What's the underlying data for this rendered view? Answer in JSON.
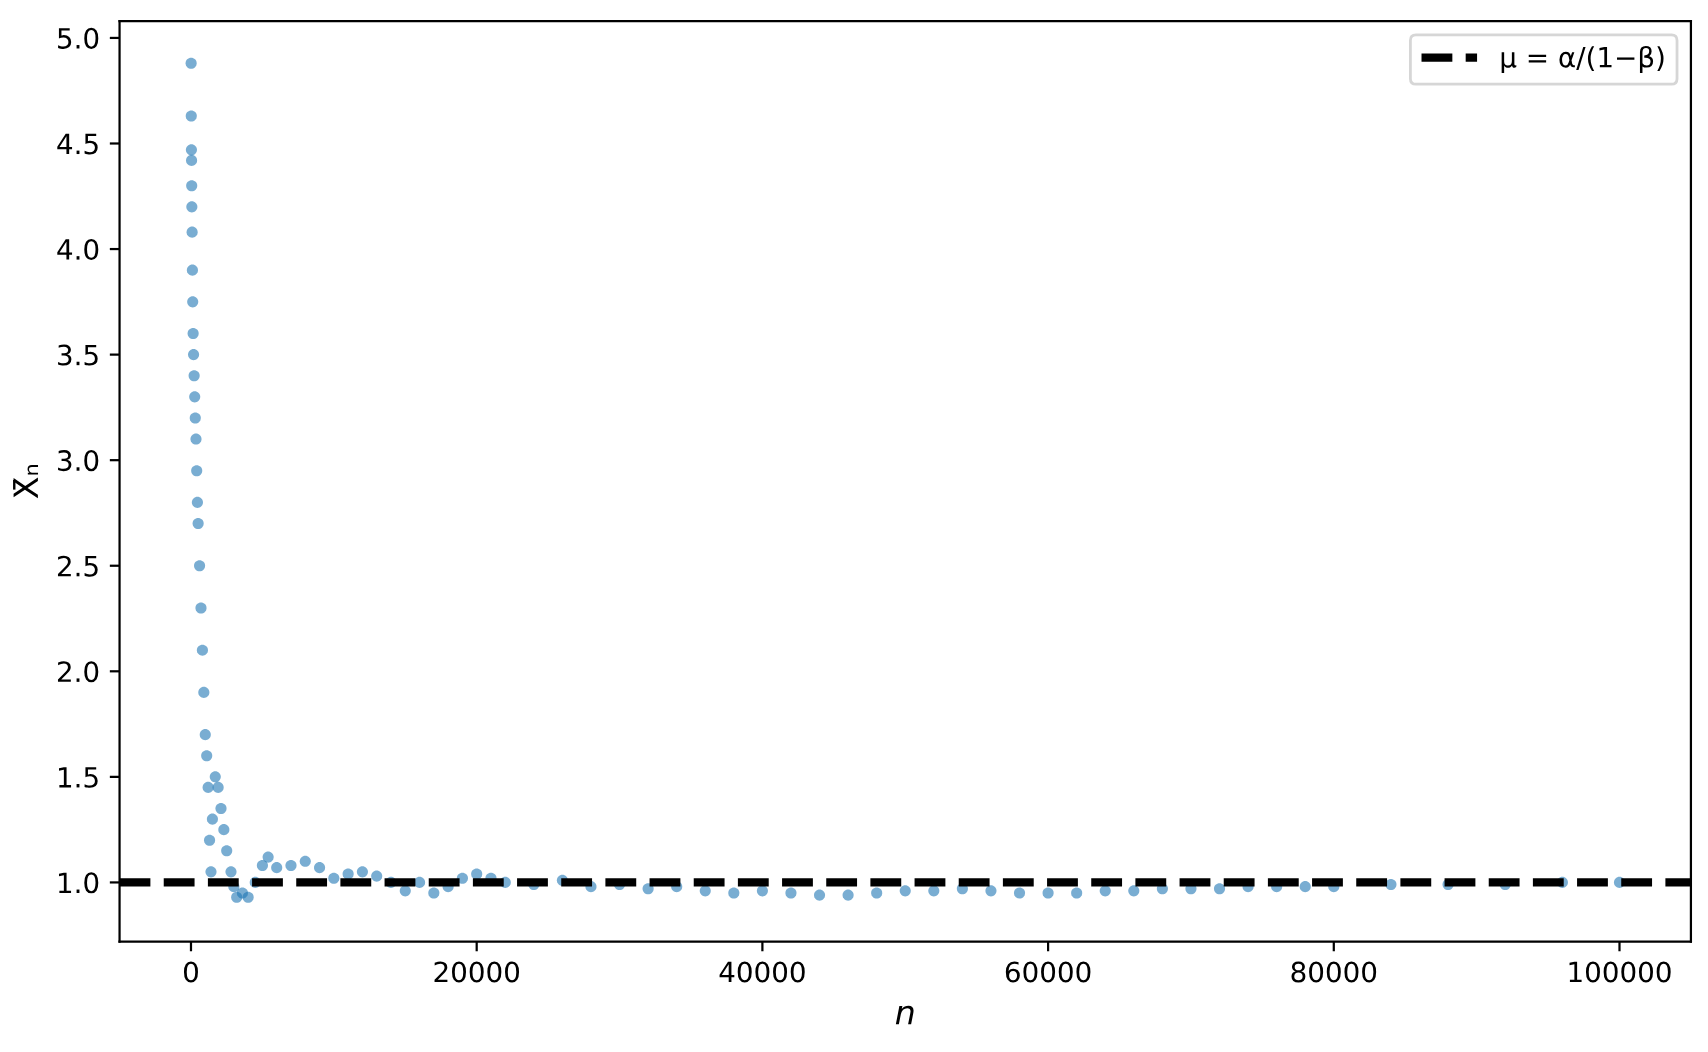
{
  "chart_data": {
    "type": "scatter",
    "xlabel": "n",
    "ylabel": "X̄ₙ",
    "series": [
      {
        "color": "#1f77b4",
        "x": [
          10,
          20,
          30,
          40,
          50,
          60,
          80,
          100,
          120,
          150,
          180,
          220,
          260,
          300,
          350,
          400,
          450,
          500,
          600,
          700,
          800,
          900,
          1000,
          1100,
          1200,
          1300,
          1400,
          1500,
          1700,
          1900,
          2100,
          2300,
          2500,
          2800,
          3000,
          3200,
          3600,
          4000,
          4500,
          5000,
          5400,
          6000,
          7000,
          8000,
          9000,
          10000,
          11000,
          12000,
          13000,
          14000,
          15000,
          16000,
          17000,
          18000,
          19000,
          20000,
          21000,
          22000,
          24000,
          26000,
          28000,
          30000,
          32000,
          34000,
          36000,
          38000,
          40000,
          42000,
          44000,
          46000,
          48000,
          50000,
          52000,
          54000,
          56000,
          58000,
          60000,
          62000,
          64000,
          66000,
          68000,
          70000,
          72000,
          74000,
          76000,
          78000,
          80000,
          84000,
          88000,
          92000,
          96000,
          100000
        ],
        "values": [
          4.88,
          4.63,
          4.47,
          4.42,
          4.3,
          4.2,
          4.08,
          3.9,
          3.75,
          3.6,
          3.5,
          3.4,
          3.3,
          3.2,
          3.1,
          2.95,
          2.8,
          2.7,
          2.5,
          2.3,
          2.1,
          1.9,
          1.7,
          1.6,
          1.45,
          1.2,
          1.05,
          1.3,
          1.5,
          1.45,
          1.35,
          1.25,
          1.15,
          1.05,
          0.98,
          0.93,
          0.95,
          0.93,
          1.0,
          1.08,
          1.12,
          1.07,
          1.08,
          1.1,
          1.07,
          1.02,
          1.04,
          1.05,
          1.03,
          1.0,
          0.96,
          1.0,
          0.95,
          0.98,
          1.02,
          1.04,
          1.02,
          1.0,
          0.99,
          1.01,
          0.98,
          0.99,
          0.97,
          0.98,
          0.96,
          0.95,
          0.96,
          0.95,
          0.94,
          0.94,
          0.95,
          0.96,
          0.96,
          0.97,
          0.96,
          0.95,
          0.95,
          0.95,
          0.96,
          0.96,
          0.97,
          0.97,
          0.97,
          0.98,
          0.98,
          0.98,
          0.98,
          0.99,
          0.99,
          0.99,
          1.0,
          1.0
        ]
      }
    ],
    "xlim": [
      -5000,
      105000
    ],
    "xticks": [
      0,
      20000,
      40000,
      60000,
      80000,
      100000
    ],
    "ylim": [
      0.72,
      5.08
    ],
    "yticks": [
      {
        "value": 1,
        "label": "1.0"
      },
      1.5,
      {
        "value": 2,
        "label": "2.0"
      },
      2.5,
      {
        "value": 3,
        "label": "3.0"
      },
      3.5,
      {
        "value": 4,
        "label": "4.0"
      },
      4.5,
      {
        "value": 5,
        "label": "5.0"
      }
    ],
    "ref_lines": [
      {
        "axis": "y",
        "value": 1.0,
        "label": "μ = α/(1−β)",
        "color": "#000000",
        "line_style": "dashed"
      }
    ],
    "legend": "top right",
    "marker": "circle",
    "grid": false
  }
}
